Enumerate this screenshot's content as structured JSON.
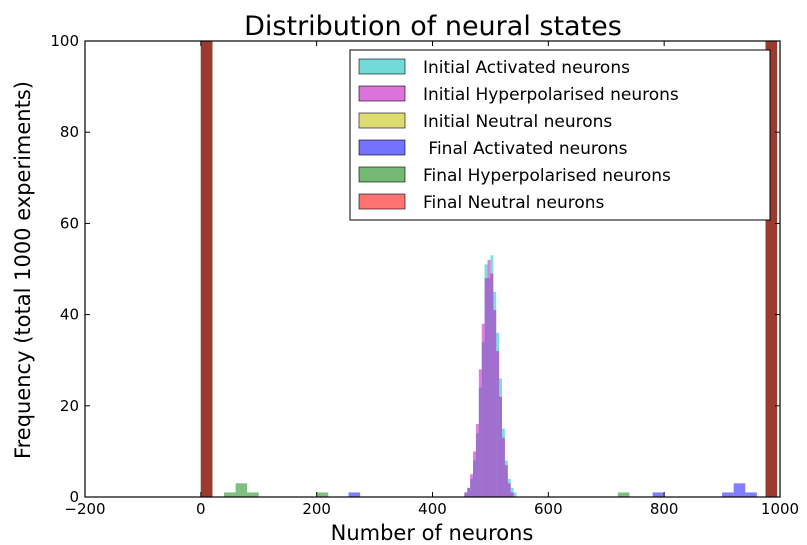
{
  "chart_data": {
    "type": "histogram",
    "title": "Distribution of neural states",
    "xlabel": "Number of neurons",
    "ylabel": "Frequency (total 1000 experiments)",
    "xlim": [
      -200,
      1000
    ],
    "ylim": [
      0,
      100
    ],
    "xticks": [
      -200,
      0,
      200,
      400,
      600,
      800,
      1000
    ],
    "yticks": [
      0,
      20,
      40,
      60,
      80,
      100
    ],
    "xtick_labels": [
      "−200",
      "0",
      "200",
      "400",
      "600",
      "800",
      "1000"
    ],
    "ytick_labels": [
      "0",
      "20",
      "40",
      "60",
      "80",
      "100"
    ],
    "legend_position": "upper-right",
    "series": [
      {
        "name": "Initial Activated neurons",
        "color": "#00bcbc",
        "bins": [
          [
            455,
            460,
            1
          ],
          [
            460,
            465,
            2
          ],
          [
            465,
            470,
            4
          ],
          [
            470,
            475,
            8
          ],
          [
            475,
            480,
            14
          ],
          [
            480,
            485,
            24
          ],
          [
            485,
            490,
            34
          ],
          [
            490,
            495,
            51
          ],
          [
            495,
            500,
            48
          ],
          [
            500,
            505,
            53
          ],
          [
            505,
            510,
            45
          ],
          [
            510,
            515,
            36
          ],
          [
            515,
            520,
            26
          ],
          [
            520,
            525,
            15
          ],
          [
            525,
            530,
            8
          ],
          [
            530,
            535,
            4
          ],
          [
            535,
            540,
            2
          ],
          [
            540,
            545,
            1
          ]
        ]
      },
      {
        "name": "Initial Hyperpolarised neurons",
        "color": "#bf00bf",
        "bins": [
          [
            455,
            460,
            1
          ],
          [
            460,
            465,
            2
          ],
          [
            465,
            470,
            5
          ],
          [
            470,
            475,
            10
          ],
          [
            475,
            480,
            16
          ],
          [
            480,
            485,
            28
          ],
          [
            485,
            490,
            38
          ],
          [
            490,
            495,
            48
          ],
          [
            495,
            500,
            52
          ],
          [
            500,
            505,
            49
          ],
          [
            505,
            510,
            41
          ],
          [
            510,
            515,
            32
          ],
          [
            515,
            520,
            22
          ],
          [
            520,
            525,
            13
          ],
          [
            525,
            530,
            7
          ],
          [
            530,
            535,
            3
          ],
          [
            535,
            540,
            1
          ]
        ]
      },
      {
        "name": "Initial Neutral neurons",
        "color": "#bfbf00",
        "bins": [
          [
            0,
            20,
            100
          ],
          [
            975,
            995,
            100
          ]
        ]
      },
      {
        "name": " Final Activated neurons",
        "color": "#0000ff",
        "bins": [
          [
            0,
            20,
            100
          ],
          [
            975,
            995,
            100
          ],
          [
            255,
            275,
            1
          ],
          [
            780,
            800,
            1
          ],
          [
            900,
            920,
            1
          ],
          [
            920,
            940,
            3
          ],
          [
            940,
            960,
            1
          ]
        ]
      },
      {
        "name": "Final Hyperpolarised neurons",
        "color": "#008000",
        "bins": [
          [
            0,
            20,
            100
          ],
          [
            975,
            995,
            100
          ],
          [
            40,
            60,
            1
          ],
          [
            60,
            80,
            3
          ],
          [
            80,
            100,
            1
          ],
          [
            200,
            220,
            1
          ],
          [
            720,
            740,
            1
          ]
        ]
      },
      {
        "name": "Final Neutral neurons",
        "color": "#ff0000",
        "bins": [
          [
            0,
            20,
            100
          ],
          [
            975,
            995,
            100
          ]
        ]
      }
    ]
  }
}
